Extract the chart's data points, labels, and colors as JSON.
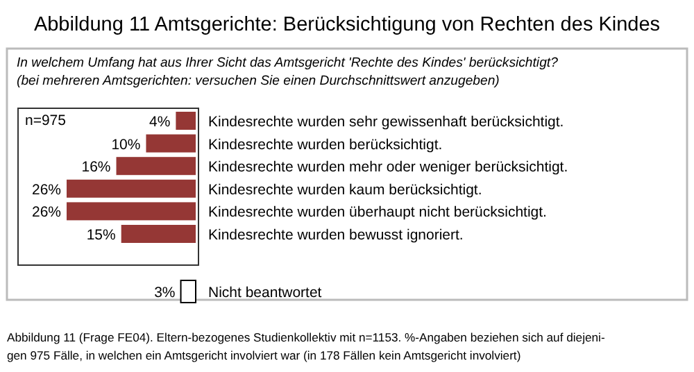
{
  "chart_data": {
    "type": "bar",
    "orientation": "horizontal",
    "title": "Abbildung 11  Amtsgerichte: Berücksichtigung von Rechten des Kindes",
    "subtitle": "In welchem Umfang hat aus Ihrer Sicht das Amtsgericht 'Rechte des Kindes' berücksichtigt?\n(bei mehreren Amtsgerichten: versuchen Sie einen Durchschnittswert anzugeben)",
    "categories": [
      "Kindesrechte wurden sehr gewissenhaft berücksichtigt.",
      "Kindesrechte wurden berücksichtigt.",
      "Kindesrechte wurden mehr oder weniger berücksichtigt.",
      "Kindesrechte wurden kaum berücksichtigt.",
      "Kindesrechte wurden überhaupt nicht berücksichtigt.",
      "Kindesrechte wurden bewusst ignoriert.",
      "Nicht beantwortet"
    ],
    "values": [
      4,
      10,
      16,
      26,
      26,
      15,
      3
    ],
    "colors": [
      "#953735",
      "#953735",
      "#953735",
      "#953735",
      "#953735",
      "#953735",
      "#ffffff"
    ],
    "value_labels": [
      "4%",
      "10%",
      "16%",
      "26%",
      "26%",
      "15%",
      "3%"
    ],
    "annotations": [
      "n=975",
      "Abbildung 11 (Frage FE04). Eltern-bezogenes Studienkollektiv mit n=1153. %-Angaben beziehen sich auf diejeni-\ngen 975 Fälle, in welchen ein Amtsgericht involviert war (in 178 Fällen kein Amtsgericht involviert)"
    ]
  }
}
